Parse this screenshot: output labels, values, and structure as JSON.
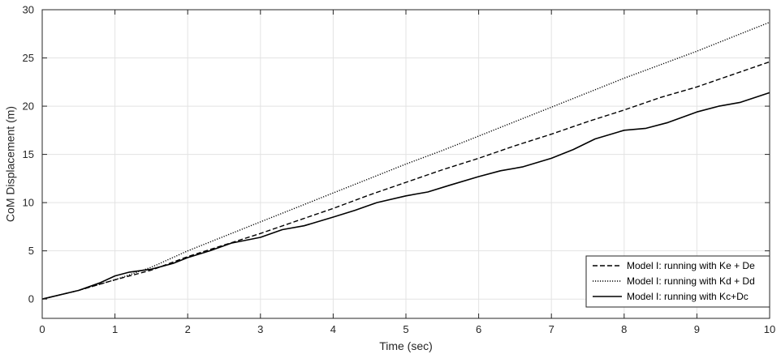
{
  "chart_data": {
    "type": "line",
    "title": "",
    "xlabel": "Time (sec)",
    "ylabel": "CoM Displacement (m)",
    "xlim": [
      0,
      10
    ],
    "ylim": [
      -2,
      30
    ],
    "xticks": [
      0,
      1,
      2,
      3,
      4,
      5,
      6,
      7,
      8,
      9,
      10
    ],
    "yticks": [
      0,
      5,
      10,
      15,
      20,
      25,
      30
    ],
    "grid": true,
    "legend_position": "bottom-right",
    "series": [
      {
        "name": "Model I: running with Ke + De",
        "style": "dashed",
        "color": "#000000",
        "x": [
          0,
          0.5,
          1,
          1.5,
          2,
          2.5,
          3,
          3.5,
          4,
          4.5,
          5,
          5.5,
          6,
          6.5,
          7,
          7.5,
          8,
          8.5,
          9,
          9.5,
          10
        ],
        "y": [
          0,
          0.9,
          2.0,
          3.0,
          4.4,
          5.6,
          6.8,
          8.1,
          9.4,
          10.8,
          12.1,
          13.4,
          14.6,
          15.9,
          17.1,
          18.4,
          19.6,
          20.9,
          22.0,
          23.3,
          24.6
        ]
      },
      {
        "name": "Model I: running with Kd + Dd",
        "style": "dotted",
        "color": "#000000",
        "x": [
          0,
          0.5,
          1,
          1.5,
          2,
          2.5,
          3,
          3.5,
          4,
          4.5,
          5,
          5.5,
          6,
          6.5,
          7,
          7.5,
          8,
          8.5,
          9,
          9.5,
          10
        ],
        "y": [
          0,
          0.9,
          2.0,
          3.3,
          5.0,
          6.5,
          8.0,
          9.5,
          11.0,
          12.5,
          14.0,
          15.4,
          16.9,
          18.4,
          19.9,
          21.4,
          22.9,
          24.3,
          25.7,
          27.2,
          28.7
        ]
      },
      {
        "name": "Model I: running with Kc+Dc",
        "style": "solid",
        "color": "#000000",
        "x": [
          0,
          0.5,
          0.8,
          1,
          1.2,
          1.5,
          1.8,
          2,
          2.3,
          2.6,
          3,
          3.3,
          3.6,
          4,
          4.3,
          4.6,
          5,
          5.3,
          5.6,
          6,
          6.3,
          6.6,
          7,
          7.3,
          7.6,
          8,
          8.3,
          8.6,
          9,
          9.3,
          9.6,
          10
        ],
        "y": [
          0,
          0.9,
          1.7,
          2.4,
          2.8,
          3.1,
          3.7,
          4.3,
          5.0,
          5.8,
          6.4,
          7.2,
          7.6,
          8.5,
          9.2,
          10.0,
          10.7,
          11.1,
          11.8,
          12.7,
          13.3,
          13.7,
          14.6,
          15.5,
          16.6,
          17.5,
          17.7,
          18.3,
          19.4,
          20.0,
          20.4,
          21.4
        ]
      }
    ]
  }
}
